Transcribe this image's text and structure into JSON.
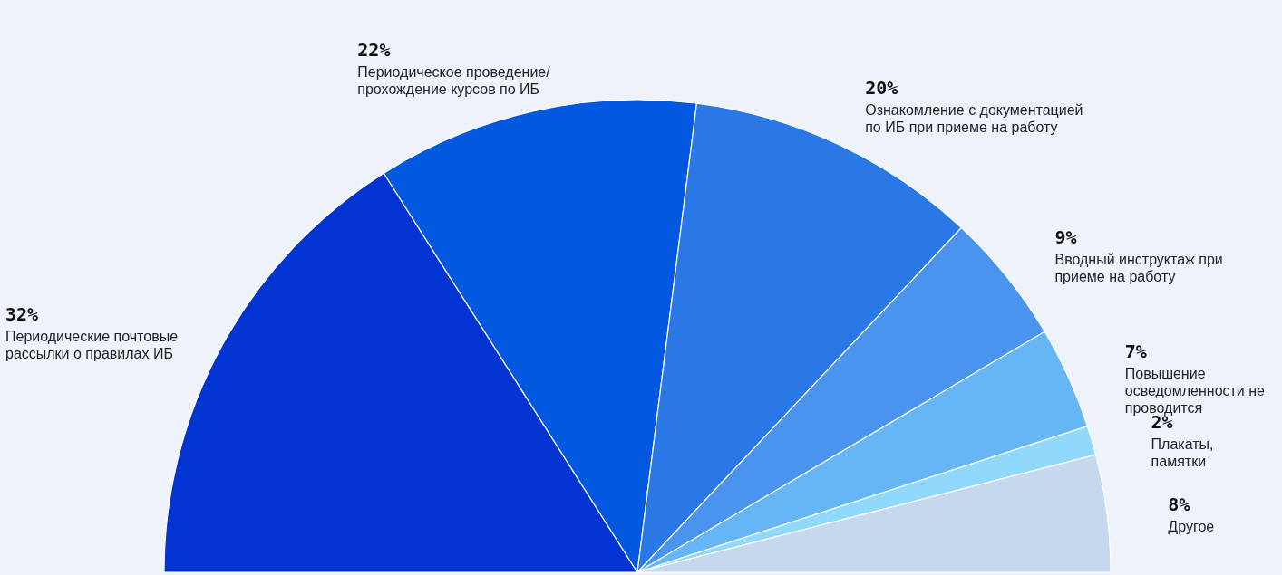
{
  "chart_data": {
    "type": "pie",
    "categories": [
      "Периодические почтовые рассылки о правилах ИБ",
      "Периодическое проведение/ прохождение курсов по ИБ",
      "Ознакомление с документацией по ИБ при приеме на работу",
      "Вводный инструктаж при приеме на работу",
      "Повышение осведомленности не проводится",
      "Плакаты, памятки",
      "Другое"
    ],
    "values": [
      32,
      22,
      20,
      9,
      7,
      2,
      8
    ],
    "colors": [
      "#0234d2",
      "#0358e0",
      "#2a78e6",
      "#4a94ee",
      "#66b6f6",
      "#90d8fc",
      "#c5d8ee"
    ],
    "value_labels": [
      "32%",
      "22%",
      "20%",
      "9%",
      "7%",
      "2%",
      "8%"
    ]
  }
}
